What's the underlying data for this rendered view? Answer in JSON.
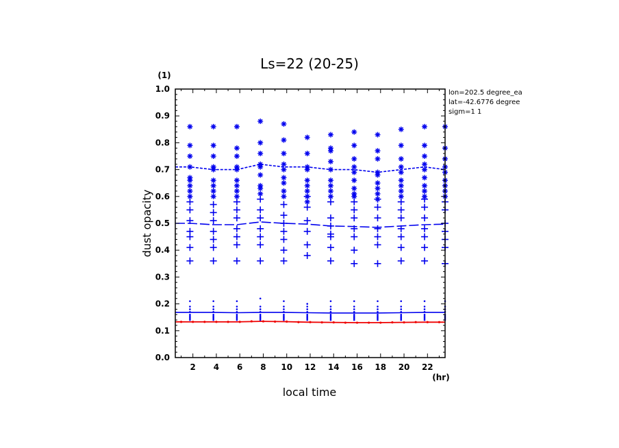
{
  "chart_data": {
    "type": "scatter",
    "title": "Ls=22 (20-25)",
    "xlabel": "local time",
    "ylabel": "dust opacity",
    "xunit": "(hr)",
    "yunit": "(1)",
    "xlim": [
      0.5,
      23.5
    ],
    "ylim": [
      0,
      1.0
    ],
    "xticks": [
      2,
      4,
      6,
      8,
      10,
      12,
      14,
      16,
      18,
      20,
      22
    ],
    "yticks": [
      0.0,
      0.1,
      0.2,
      0.3,
      0.4,
      0.5,
      0.6,
      0.7,
      0.8,
      0.9,
      1.0
    ],
    "annotations": [
      "lon=202.5 degree_ea",
      "lat=-42.6776 degree",
      "sigm=1 1"
    ],
    "colors": {
      "series": "#0000ee",
      "baseline": "#ee0000",
      "axes": "#000000"
    },
    "x": [
      1.75,
      3.75,
      5.75,
      7.75,
      9.75,
      11.75,
      13.75,
      15.75,
      17.75,
      19.75,
      21.75,
      23.5
    ],
    "series": [
      {
        "marker": "star",
        "points": [
          [
            0.86,
            0.79,
            0.75,
            0.71,
            0.67,
            0.66,
            0.64,
            0.62,
            0.6
          ],
          [
            0.86,
            0.79,
            0.75,
            0.71,
            0.7,
            0.66,
            0.64,
            0.62,
            0.6
          ],
          [
            0.86,
            0.78,
            0.75,
            0.71,
            0.7,
            0.66,
            0.64,
            0.62,
            0.6
          ],
          [
            0.88,
            0.8,
            0.76,
            0.72,
            0.71,
            0.68,
            0.64,
            0.63,
            0.61
          ],
          [
            0.87,
            0.81,
            0.76,
            0.72,
            0.7,
            0.67,
            0.65,
            0.62,
            0.6
          ],
          [
            0.82,
            0.76,
            0.71,
            0.7,
            0.66,
            0.64,
            0.62,
            0.6,
            0.58
          ],
          [
            0.83,
            0.78,
            0.77,
            0.73,
            0.7,
            0.66,
            0.64,
            0.62,
            0.6
          ],
          [
            0.84,
            0.79,
            0.74,
            0.71,
            0.69,
            0.66,
            0.63,
            0.61,
            0.6
          ],
          [
            0.83,
            0.77,
            0.74,
            0.69,
            0.68,
            0.65,
            0.63,
            0.61,
            0.59
          ],
          [
            0.85,
            0.79,
            0.74,
            0.71,
            0.69,
            0.66,
            0.64,
            0.62,
            0.6
          ],
          [
            0.86,
            0.79,
            0.75,
            0.72,
            0.7,
            0.67,
            0.64,
            0.62,
            0.6
          ],
          [
            0.86,
            0.78,
            0.74,
            0.71,
            0.69,
            0.66,
            0.64,
            0.62,
            0.6
          ]
        ]
      },
      {
        "marker": "plus",
        "points": [
          [
            0.58,
            0.55,
            0.51,
            0.47,
            0.45,
            0.41,
            0.36
          ],
          [
            0.57,
            0.54,
            0.51,
            0.47,
            0.44,
            0.41,
            0.36
          ],
          [
            0.58,
            0.55,
            0.52,
            0.48,
            0.45,
            0.42,
            0.36
          ],
          [
            0.59,
            0.55,
            0.52,
            0.48,
            0.45,
            0.42,
            0.36
          ],
          [
            0.57,
            0.53,
            0.5,
            0.47,
            0.44,
            0.4,
            0.36
          ],
          [
            0.6,
            0.56,
            0.51,
            0.47,
            0.42,
            0.38
          ],
          [
            0.58,
            0.52,
            0.49,
            0.46,
            0.45,
            0.41,
            0.36
          ],
          [
            0.58,
            0.55,
            0.52,
            0.48,
            0.45,
            0.4,
            0.35
          ],
          [
            0.59,
            0.56,
            0.52,
            0.48,
            0.45,
            0.42,
            0.35
          ],
          [
            0.58,
            0.55,
            0.52,
            0.48,
            0.45,
            0.41,
            0.36
          ],
          [
            0.59,
            0.56,
            0.52,
            0.48,
            0.45,
            0.41,
            0.36
          ],
          [
            0.58,
            0.55,
            0.5,
            0.47,
            0.44,
            0.41,
            0.35
          ]
        ]
      },
      {
        "marker": "dot",
        "points": [
          [
            0.21,
            0.19,
            0.18,
            0.17,
            0.16,
            0.155,
            0.15,
            0.145,
            0.14
          ],
          [
            0.21,
            0.19,
            0.18,
            0.17,
            0.16,
            0.155,
            0.15,
            0.145,
            0.14
          ],
          [
            0.21,
            0.19,
            0.18,
            0.17,
            0.16,
            0.155,
            0.15,
            0.145,
            0.14
          ],
          [
            0.22,
            0.19,
            0.18,
            0.17,
            0.16,
            0.155,
            0.15,
            0.145,
            0.14
          ],
          [
            0.21,
            0.19,
            0.18,
            0.17,
            0.16,
            0.155,
            0.15,
            0.145,
            0.14
          ],
          [
            0.2,
            0.19,
            0.18,
            0.17,
            0.16,
            0.155,
            0.15,
            0.145,
            0.14
          ],
          [
            0.21,
            0.19,
            0.18,
            0.17,
            0.16,
            0.155,
            0.15,
            0.145,
            0.14
          ],
          [
            0.21,
            0.19,
            0.18,
            0.17,
            0.16,
            0.155,
            0.15,
            0.145,
            0.14
          ],
          [
            0.21,
            0.19,
            0.18,
            0.17,
            0.16,
            0.155,
            0.15,
            0.145,
            0.14
          ],
          [
            0.21,
            0.19,
            0.18,
            0.17,
            0.16,
            0.155,
            0.15,
            0.145,
            0.14
          ],
          [
            0.21,
            0.19,
            0.18,
            0.17,
            0.16,
            0.155,
            0.15,
            0.145,
            0.14
          ],
          [
            0.21,
            0.19,
            0.18,
            0.17,
            0.16,
            0.155,
            0.15,
            0.145,
            0.14
          ]
        ]
      },
      {
        "style": "short-dash",
        "values": [
          0.71,
          0.7,
          0.7,
          0.72,
          0.71,
          0.71,
          0.7,
          0.7,
          0.69,
          0.7,
          0.71,
          0.7
        ]
      },
      {
        "style": "long-dash",
        "values": [
          0.5,
          0.495,
          0.495,
          0.505,
          0.5,
          0.497,
          0.49,
          0.488,
          0.485,
          0.49,
          0.495,
          0.497
        ]
      },
      {
        "style": "solid",
        "values": [
          0.168,
          0.168,
          0.167,
          0.168,
          0.168,
          0.167,
          0.166,
          0.166,
          0.166,
          0.167,
          0.168,
          0.168
        ]
      },
      {
        "style": "solid-red",
        "values": [
          0.133,
          0.133,
          0.133,
          0.135,
          0.134,
          0.132,
          0.131,
          0.13,
          0.13,
          0.131,
          0.132,
          0.132
        ]
      }
    ]
  }
}
